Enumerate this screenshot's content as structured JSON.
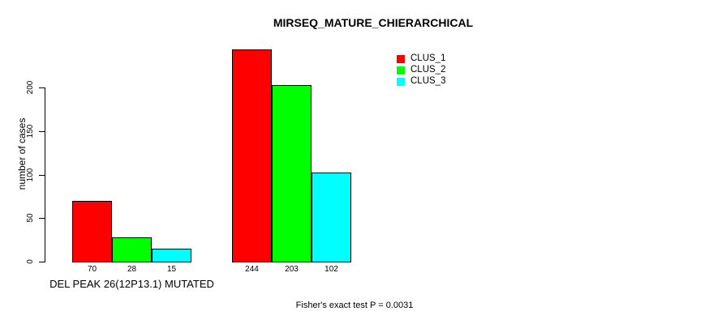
{
  "chart_data": {
    "type": "bar",
    "title": "MIRSEQ_MATURE_CHIERARCHICAL",
    "ylabel": "number of cases",
    "xlabel": "",
    "yticks": [
      0,
      50,
      100,
      150,
      200
    ],
    "ylim": [
      0,
      200
    ],
    "grid": false,
    "legend_position": "top-right",
    "groups": [
      {
        "label": "DEL PEAK 26(12P13.1) MUTATED",
        "values": [
          70,
          28,
          15
        ]
      },
      {
        "label": "",
        "values": [
          244,
          203,
          102
        ]
      }
    ],
    "series": [
      {
        "name": "CLUS_1",
        "color": "#ff0000"
      },
      {
        "name": "CLUS_2",
        "color": "#00ff00"
      },
      {
        "name": "CLUS_3",
        "color": "#00ffff"
      }
    ],
    "bar_value_labels": [
      [
        70,
        28,
        15
      ],
      [
        244,
        203,
        102
      ]
    ],
    "annotation": "Fisher's exact test P = 0.0031"
  }
}
